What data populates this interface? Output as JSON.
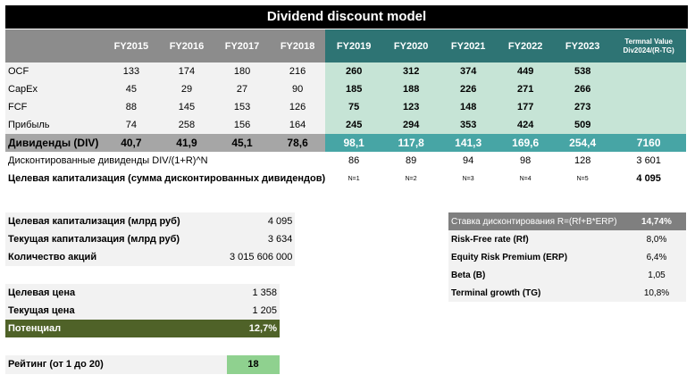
{
  "title": "Dividend discount model",
  "header": {
    "years": [
      "FY2015",
      "FY2016",
      "FY2017",
      "FY2018",
      "FY2019",
      "FY2020",
      "FY2021",
      "FY2022",
      "FY2023"
    ],
    "terminal_line1": "Termnal Value",
    "terminal_line2": "Div2024/(R-TG)"
  },
  "rows": [
    {
      "label": "OCF",
      "values": [
        "133",
        "174",
        "180",
        "216",
        "260",
        "312",
        "374",
        "449",
        "538"
      ]
    },
    {
      "label": "CapEx",
      "values": [
        "45",
        "29",
        "27",
        "90",
        "185",
        "188",
        "226",
        "271",
        "266"
      ]
    },
    {
      "label": "FCF",
      "values": [
        "88",
        "145",
        "153",
        "126",
        "75",
        "123",
        "148",
        "177",
        "273"
      ]
    },
    {
      "label": "Прибыль",
      "values": [
        "74",
        "258",
        "156",
        "164",
        "245",
        "294",
        "353",
        "424",
        "509"
      ]
    }
  ],
  "dividends": {
    "label": "Дивиденды (DIV)",
    "values": [
      "40,7",
      "41,9",
      "45,1",
      "78,6",
      "98,1",
      "117,8",
      "141,3",
      "169,6",
      "254,4"
    ],
    "terminal": "7160"
  },
  "discounted": {
    "label": "Дисконтированные дивиденды DIV/(1+R)^N",
    "values": [
      "86",
      "89",
      "94",
      "98",
      "128"
    ],
    "terminal": "3 601"
  },
  "target_cap_row": {
    "label": "Целевая капитализация (сумма дисконтированных дивидендов)",
    "n_labels": [
      "N=1",
      "N=2",
      "N=3",
      "N=4",
      "N=5"
    ],
    "total": "4 095"
  },
  "left_panel": [
    {
      "label": "Целевая капитализация (млрд руб)",
      "value": "4 095"
    },
    {
      "label": "Текущая капитализация (млрд руб)",
      "value": "3 634"
    },
    {
      "label": "Количество акций",
      "value": "3 015 606 000"
    }
  ],
  "price_panel": [
    {
      "label": "Целевая цена",
      "value": "1 358"
    },
    {
      "label": "Текущая цена",
      "value": "1 205"
    }
  ],
  "potential": {
    "label": "Потенциал",
    "value": "12,7%"
  },
  "rating": {
    "label": "Рейтинг (от 1 до 20)",
    "value": "18"
  },
  "rate_panel": {
    "header_label": "Ставка дисконтирования R=(Rf+B*ERP)",
    "header_value": "14,74%",
    "rows": [
      {
        "label": "Risk-Free rate (Rf)",
        "value": "8,0%"
      },
      {
        "label": "Equity Risk Premium (ERP)",
        "value": "6,4%"
      },
      {
        "label": "Beta (B)",
        "value": "1,05"
      },
      {
        "label": "Terminal growth (TG)",
        "value": "10,8%"
      }
    ]
  }
}
